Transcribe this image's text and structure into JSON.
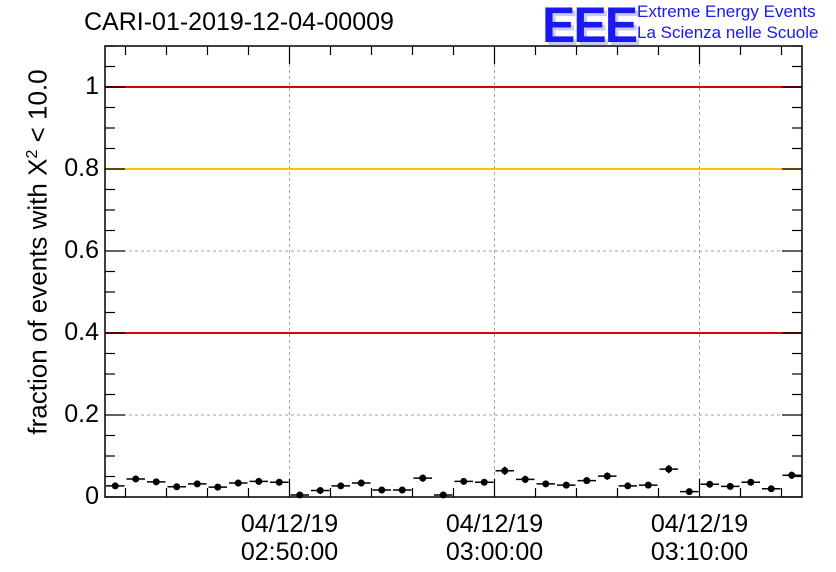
{
  "title": "CARI-01-2019-12-04-00009",
  "logo": {
    "letters": "EEE",
    "line1": "Extreme Energy Events",
    "line2": "La Scienza nelle Scuole",
    "color": "#1a1aee"
  },
  "chart_data": {
    "type": "scatter",
    "title": "CARI-01-2019-12-04-00009",
    "xlabel": "",
    "ylabel_prefix": "fraction of events with X",
    "ylabel_sup": "2",
    "ylabel_suffix": " < 10.0",
    "ylim": [
      0,
      1.1
    ],
    "xlim_minutes": [
      0,
      34
    ],
    "grid": true,
    "y_ticks": [
      {
        "value": 0,
        "label": "0"
      },
      {
        "value": 0.2,
        "label": "0.2"
      },
      {
        "value": 0.4,
        "label": "0.4"
      },
      {
        "value": 0.6,
        "label": "0.6"
      },
      {
        "value": 0.8,
        "label": "0.8"
      },
      {
        "value": 1,
        "label": "1"
      }
    ],
    "x_ticks": [
      {
        "date": "04/12/19",
        "time": "02:50:00"
      },
      {
        "date": "04/12/19",
        "time": "03:00:00"
      },
      {
        "date": "04/12/19",
        "time": "03:10:00"
      }
    ],
    "reference_lines": [
      {
        "y": 1.0,
        "color": "#e00000"
      },
      {
        "y": 0.8,
        "color": "#ffc000"
      },
      {
        "y": 0.4,
        "color": "#e00000"
      }
    ],
    "series": [
      {
        "marker_color": "#000000",
        "y": [
          0.027,
          0.044,
          0.037,
          0.025,
          0.032,
          0.024,
          0.034,
          0.038,
          0.036,
          0.005,
          0.016,
          0.027,
          0.034,
          0.017,
          0.017,
          0.046,
          0.005,
          0.038,
          0.036,
          0.064,
          0.043,
          0.032,
          0.029,
          0.04,
          0.051,
          0.027,
          0.029,
          0.068,
          0.013,
          0.031,
          0.026,
          0.036,
          0.02,
          0.053
        ],
        "yerr": [
          0.007,
          0.008,
          0.008,
          0.007,
          0.008,
          0.007,
          0.008,
          0.008,
          0.008,
          0.004,
          0.006,
          0.007,
          0.008,
          0.006,
          0.006,
          0.009,
          0.004,
          0.008,
          0.008,
          0.01,
          0.009,
          0.008,
          0.007,
          0.008,
          0.009,
          0.007,
          0.007,
          0.01,
          0.005,
          0.008,
          0.007,
          0.008,
          0.006,
          0.009
        ]
      }
    ]
  }
}
